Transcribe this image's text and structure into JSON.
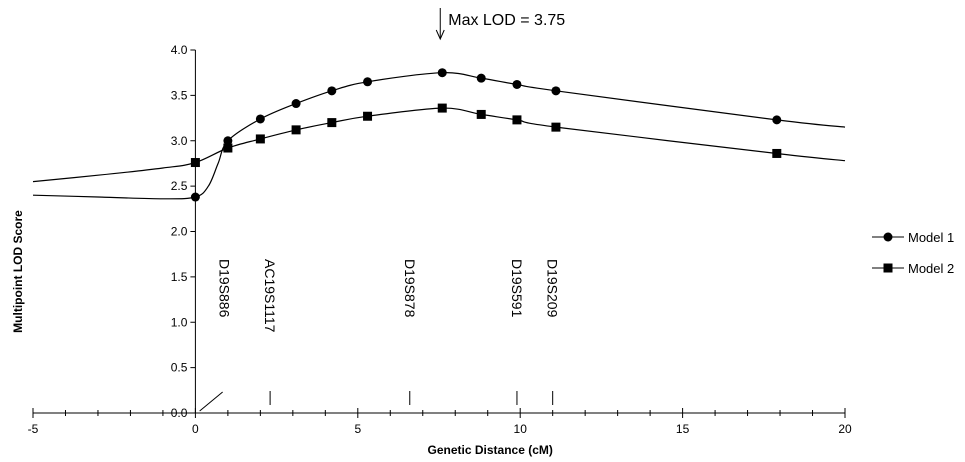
{
  "chart_data": {
    "type": "line",
    "title": "",
    "xlabel": "Genetic Distance (cM)",
    "ylabel": "Multipoint LOD Score",
    "xlim": [
      -5,
      20
    ],
    "ylim": [
      0,
      4
    ],
    "x_ticks": [
      -5,
      0,
      5,
      10,
      15,
      20
    ],
    "x_tick_labels": [
      "-5",
      "0",
      "5",
      "10",
      "15",
      "20"
    ],
    "y_ticks": [
      0,
      0.5,
      1,
      1.5,
      2,
      2.5,
      3,
      3.5,
      4
    ],
    "y_tick_labels": [
      "0.0",
      "0.5",
      "1.0",
      "1.5",
      "2.0",
      "2.5",
      "3.0",
      "3.5",
      "4.0"
    ],
    "grid": false,
    "legend_position": "right",
    "series": [
      {
        "name": "Model 1",
        "marker": "circle",
        "curve": [
          [
            -5,
            2.4
          ],
          [
            -3,
            2.38
          ],
          [
            -1,
            2.36
          ],
          [
            0,
            2.38
          ],
          [
            0.4,
            2.5
          ],
          [
            0.7,
            2.75
          ],
          [
            1,
            3.0
          ],
          [
            2,
            3.24
          ],
          [
            3.1,
            3.41
          ],
          [
            4.2,
            3.55
          ],
          [
            5.3,
            3.65
          ],
          [
            7.6,
            3.75
          ],
          [
            8.8,
            3.69
          ],
          [
            9.9,
            3.62
          ],
          [
            11.1,
            3.55
          ],
          [
            17.9,
            3.23
          ],
          [
            20,
            3.15
          ]
        ],
        "points": [
          [
            0,
            2.38
          ],
          [
            1,
            3.0
          ],
          [
            2,
            3.24
          ],
          [
            3.1,
            3.41
          ],
          [
            4.2,
            3.55
          ],
          [
            5.3,
            3.65
          ],
          [
            7.6,
            3.75
          ],
          [
            8.8,
            3.69
          ],
          [
            9.9,
            3.62
          ],
          [
            11.1,
            3.55
          ],
          [
            17.9,
            3.23
          ]
        ]
      },
      {
        "name": "Model 2",
        "marker": "square",
        "curve": [
          [
            -5,
            2.55
          ],
          [
            -3,
            2.62
          ],
          [
            -1,
            2.7
          ],
          [
            0,
            2.76
          ],
          [
            1,
            2.92
          ],
          [
            2,
            3.02
          ],
          [
            3.1,
            3.12
          ],
          [
            4.2,
            3.2
          ],
          [
            5.3,
            3.27
          ],
          [
            7.6,
            3.36
          ],
          [
            8.8,
            3.29
          ],
          [
            9.9,
            3.23
          ],
          [
            11.1,
            3.15
          ],
          [
            17.9,
            2.86
          ],
          [
            20,
            2.78
          ]
        ],
        "points": [
          [
            0,
            2.76
          ],
          [
            1,
            2.92
          ],
          [
            2,
            3.02
          ],
          [
            3.1,
            3.12
          ],
          [
            4.2,
            3.2
          ],
          [
            5.3,
            3.27
          ],
          [
            7.6,
            3.36
          ],
          [
            8.8,
            3.29
          ],
          [
            9.9,
            3.23
          ],
          [
            11.1,
            3.15
          ],
          [
            17.9,
            2.86
          ]
        ]
      }
    ],
    "markers": [
      {
        "label": "D19S886",
        "x": 0.1,
        "slanted": true
      },
      {
        "label": "AC19S1117",
        "x": 2.3,
        "slanted": false
      },
      {
        "label": "D19S878",
        "x": 6.6,
        "slanted": false
      },
      {
        "label": "D19S591",
        "x": 9.9,
        "slanted": false
      },
      {
        "label": "D19S209",
        "x": 11.0,
        "slanted": false
      }
    ],
    "annotations": [
      {
        "text": "Max LOD = 3.75",
        "x": 7.6,
        "y": 3.75
      }
    ]
  }
}
